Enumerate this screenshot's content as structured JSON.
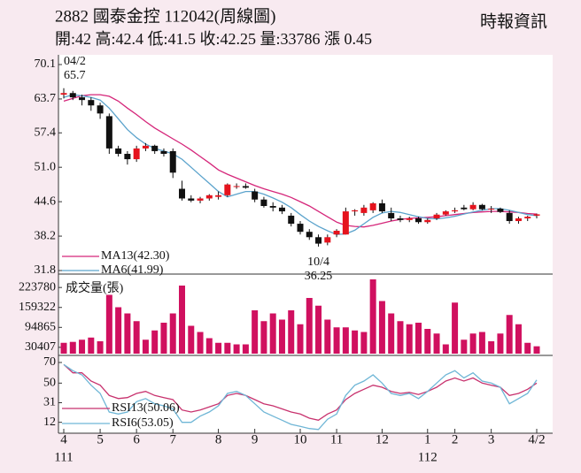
{
  "title": "2882 國泰金控 112042(周線圖)",
  "subtitle": "開:42 高:42.4 低:41.5 收:42.25 量:33786 漲 0.45",
  "source": "時報資訊",
  "chart_data": [
    {
      "type": "candlestick",
      "up_color": "#e5131d",
      "down_color": "#111111",
      "ylim": [
        31.8,
        70.1
      ],
      "yticks": [
        31.8,
        38.2,
        44.6,
        {
          "value": 51,
          "label": "51.0"
        },
        57.4,
        63.7,
        70.1
      ],
      "open": [
        64.5,
        64.8,
        64,
        63.5,
        62.5,
        60.5,
        54.5,
        53.5,
        52.5,
        54.5,
        55,
        54,
        54,
        47,
        45.2,
        44.8,
        45.2,
        45.5,
        45.8,
        47.5,
        47.5,
        46.5,
        45,
        43.8,
        43.5,
        42,
        40.5,
        39,
        38,
        37,
        38.5,
        38.5,
        42.8,
        42.5,
        43,
        44.3,
        42.5,
        41.5,
        41.2,
        41.5,
        40.8,
        41.5,
        42.2,
        42.8,
        43.5,
        43.2,
        44,
        43.2,
        43.3,
        42.5,
        41,
        41.5,
        42
      ],
      "high": [
        65.7,
        65.2,
        64.5,
        64,
        63,
        61,
        55,
        54,
        55,
        55.5,
        55.2,
        54.5,
        54.5,
        48.5,
        45.8,
        45.5,
        46,
        46.5,
        48,
        48,
        48,
        47,
        45.5,
        44.5,
        44,
        42.5,
        41,
        39.5,
        38.5,
        38.5,
        39.5,
        43.5,
        43.2,
        44,
        44.5,
        45,
        43.5,
        42,
        41.8,
        41.8,
        41.5,
        42.5,
        43,
        43.5,
        44,
        44.5,
        44.2,
        43.8,
        43.5,
        43,
        41.8,
        42,
        42.4
      ],
      "low": [
        63.8,
        63.5,
        62.5,
        61.5,
        60,
        53.5,
        53,
        51.5,
        52,
        54,
        53.5,
        53,
        49,
        44.8,
        44.5,
        44.3,
        44.8,
        45,
        45.5,
        47,
        47,
        44.5,
        43.5,
        42.8,
        42.3,
        40,
        38.5,
        37.5,
        36.25,
        36.5,
        38,
        38.5,
        42,
        42,
        42.5,
        42.5,
        41,
        40.8,
        40.8,
        40.5,
        40.5,
        41.2,
        42,
        42.5,
        43,
        43,
        43,
        42.5,
        42.5,
        40.5,
        40.5,
        41,
        41.5
      ],
      "close": [
        64.8,
        64,
        63.5,
        62.5,
        61,
        54.5,
        53.5,
        52.5,
        54.5,
        55,
        54,
        53.5,
        50,
        45.2,
        44.8,
        45.2,
        45.8,
        45.8,
        47.8,
        47.5,
        47.2,
        45,
        43.8,
        43.5,
        42.8,
        40.5,
        39,
        38,
        36.8,
        38,
        39.2,
        42.8,
        43,
        43.5,
        44.3,
        42.8,
        41.5,
        41.2,
        41.5,
        40.8,
        41.2,
        42.2,
        42.8,
        43,
        43.2,
        44,
        43.2,
        43.3,
        42.7,
        41,
        41.5,
        41.8,
        42.25
      ],
      "series": [
        {
          "name": "MA13(42.30)",
          "color": "#d5267a",
          "values": [
            63.3,
            63.8,
            64.3,
            64.5,
            64.5,
            64.2,
            63.3,
            62,
            60.8,
            59.5,
            58.3,
            57.3,
            56.3,
            55.3,
            54.2,
            53,
            51.8,
            50.5,
            49.7,
            49,
            48.3,
            47.6,
            47,
            46.5,
            46,
            45.4,
            44.6,
            43.8,
            42.8,
            41.8,
            40.8,
            40.2,
            40,
            39.9,
            40.2,
            40.6,
            41,
            41.3,
            41.5,
            41.6,
            41.7,
            41.8,
            42,
            42.2,
            42.4,
            42.6,
            42.7,
            42.8,
            42.8,
            42.7,
            42.6,
            42.4,
            42.3
          ]
        },
        {
          "name": "MA6(41.99)",
          "color": "#5ba3cc",
          "values": [
            64,
            64.5,
            64.3,
            64,
            63.5,
            62,
            60,
            58,
            56.5,
            55.3,
            54.5,
            54,
            53.5,
            52.5,
            51,
            49.5,
            48,
            46.5,
            45.5,
            46,
            46.5,
            46.5,
            46,
            45.3,
            44.5,
            43.5,
            42.2,
            41,
            40,
            39.2,
            38.5,
            38.6,
            39.3,
            40.5,
            41.7,
            42.5,
            42.8,
            42.6,
            42.2,
            41.8,
            41.5,
            41.4,
            41.6,
            41.9,
            42.3,
            42.7,
            43,
            43.3,
            43.3,
            43,
            42.6,
            42.2,
            41.99
          ]
        }
      ],
      "annotations": [
        {
          "date": "04/2",
          "value": 65.7,
          "kind": "high"
        },
        {
          "date": "10/4",
          "value": 36.25,
          "kind": "low"
        }
      ]
    },
    {
      "type": "bar",
      "title": "成交量(張)",
      "color": "#d0105f",
      "ylim": [
        10000,
        250000
      ],
      "yticks": [
        30407,
        94865,
        159322,
        223780
      ],
      "values": [
        45000,
        48000,
        55000,
        62000,
        50000,
        200000,
        160000,
        140000,
        115000,
        55000,
        85000,
        110000,
        140000,
        230000,
        100000,
        80000,
        60000,
        45000,
        45000,
        40000,
        40000,
        150000,
        115000,
        140000,
        120000,
        150000,
        105000,
        190000,
        165000,
        120000,
        95000,
        95000,
        85000,
        80000,
        250000,
        180000,
        140000,
        115000,
        105000,
        110000,
        90000,
        75000,
        40000,
        175000,
        55000,
        75000,
        80000,
        50000,
        75000,
        135000,
        105000,
        45000,
        33786
      ]
    },
    {
      "type": "line",
      "ylim": [
        4,
        76
      ],
      "yticks": [
        12,
        31,
        50,
        70
      ],
      "categories": [
        "4",
        null,
        null,
        null,
        "5",
        null,
        null,
        null,
        "6",
        null,
        null,
        null,
        "7",
        null,
        null,
        null,
        null,
        "8",
        null,
        null,
        null,
        "9",
        null,
        null,
        null,
        null,
        "10",
        null,
        null,
        null,
        "11",
        null,
        null,
        null,
        null,
        "12",
        null,
        null,
        null,
        null,
        "1",
        null,
        null,
        "2",
        null,
        null,
        null,
        "3",
        null,
        null,
        null,
        null,
        "4/2"
      ],
      "category_years": [
        "111",
        null,
        null,
        null,
        null,
        null,
        null,
        null,
        null,
        null,
        null,
        null,
        null,
        null,
        null,
        null,
        null,
        null,
        null,
        null,
        null,
        null,
        null,
        null,
        null,
        null,
        null,
        null,
        null,
        null,
        null,
        null,
        null,
        null,
        null,
        null,
        null,
        null,
        null,
        null,
        "112",
        null,
        null,
        null,
        null,
        null,
        null,
        null,
        null,
        null,
        null,
        null,
        null
      ],
      "series": [
        {
          "name": "RSI13(50.06)",
          "color": "#c8326e",
          "values": [
            68,
            60,
            60,
            52,
            48,
            38,
            35,
            36,
            40,
            42,
            38,
            36,
            34,
            24,
            22,
            24,
            27,
            30,
            38,
            40,
            38,
            34,
            30,
            28,
            25,
            22,
            20,
            16,
            14,
            20,
            24,
            34,
            40,
            44,
            48,
            46,
            42,
            40,
            41,
            39,
            42,
            46,
            52,
            55,
            52,
            55,
            50,
            48,
            46,
            38,
            40,
            44,
            50.06
          ]
        },
        {
          "name": "RSI6(53.05)",
          "color": "#6fb6d6",
          "values": [
            68,
            62,
            58,
            48,
            40,
            22,
            20,
            22,
            32,
            35,
            30,
            28,
            25,
            12,
            12,
            18,
            22,
            28,
            40,
            42,
            38,
            30,
            22,
            18,
            14,
            10,
            8,
            6,
            5,
            15,
            20,
            38,
            48,
            52,
            58,
            50,
            40,
            38,
            40,
            35,
            42,
            50,
            58,
            62,
            55,
            60,
            52,
            50,
            46,
            30,
            35,
            40,
            53.05
          ]
        }
      ]
    }
  ]
}
